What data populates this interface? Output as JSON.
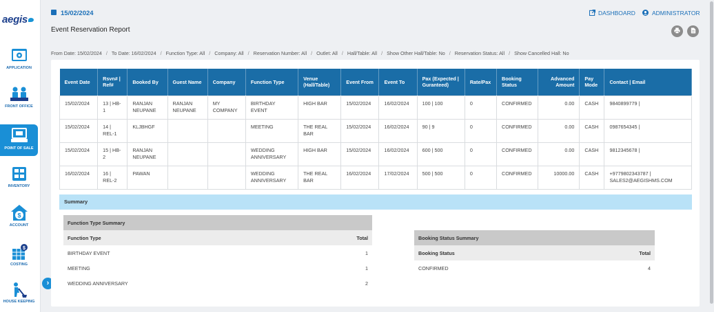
{
  "app": {
    "logo": "aegis"
  },
  "header": {
    "date": "15/02/2024",
    "dashboard_label": "DASHBOARD",
    "admin_label": "ADMINISTRATOR",
    "title": "Event Reservation Report"
  },
  "sidebar": {
    "items": [
      {
        "label": "APPLICATION",
        "icon": "application-icon"
      },
      {
        "label": "FRONT OFFICE",
        "icon": "front-office-icon"
      },
      {
        "label": "POINT OF SALE",
        "icon": "point-of-sale-icon",
        "active": true
      },
      {
        "label": "INVENTORY",
        "icon": "inventory-icon"
      },
      {
        "label": "ACCOUNT",
        "icon": "account-icon"
      },
      {
        "label": "COSTING",
        "icon": "costing-icon"
      },
      {
        "label": "HOUSE KEEPING",
        "icon": "housekeeping-icon"
      }
    ],
    "collapse_glyph": "›"
  },
  "filters": [
    "From Date: 15/02/2024",
    "To Date: 16/02/2024",
    "Function Type: All",
    "Company: All",
    "Reservation Number: All",
    "Outlet: All",
    "Hall/Table: All",
    "Show Other Hall/Table: No",
    "Reservation Status: All",
    "Show Cancelled Hall: No"
  ],
  "table": {
    "headers": [
      "Event Date",
      "Rsvn# | Ref#",
      "Booked By",
      "Guest Name",
      "Company",
      "Function Type",
      "Venue (Hall/Table)",
      "Event From",
      "Event To",
      "Pax (Expected | Guranteed)",
      "Rate/Pax",
      "Booking Status",
      "Advanced Amount",
      "Pay Mode",
      "Contact | Email"
    ],
    "rows": [
      [
        "15/02/2024",
        "13 | HB-1",
        "RANJAN NEUPANE",
        "RANJAN NEUPANE",
        "MY COMPANY",
        "BIRTHDAY EVENT",
        "HIGH BAR",
        "15/02/2024",
        "16/02/2024",
        "100 | 100",
        "0",
        "CONFIRMED",
        "0.00",
        "CASH",
        "9840899779 |"
      ],
      [
        "15/02/2024",
        "14 | REL-1",
        "KLJBHGF",
        "",
        "",
        "MEETING",
        "THE REAL BAR",
        "15/02/2024",
        "16/02/2024",
        "90 | 9",
        "0",
        "CONFIRMED",
        "0.00",
        "CASH",
        "0987654345 |"
      ],
      [
        "15/02/2024",
        "15 | HB-2",
        "RANJAN NEUPANE",
        "",
        "",
        "WEDDING ANNIVERSARY",
        "HIGH BAR",
        "15/02/2024",
        "16/02/2024",
        "600 | 500",
        "0",
        "CONFIRMED",
        "0.00",
        "CASH",
        "9812345678 |"
      ],
      [
        "16/02/2024",
        "16 | REL-2",
        "PAWAN",
        "",
        "",
        "WEDDING ANNIVERSARY",
        "THE REAL BAR",
        "16/02/2024",
        "17/02/2024",
        "500 | 500",
        "0",
        "CONFIRMED",
        "10000.00",
        "CASH",
        "+9779802343787 | SALES2@AEGISHMS.COM"
      ]
    ]
  },
  "summary": {
    "title": "Summary",
    "function_type": {
      "caption": "Function Type Summary",
      "col1": "Function Type",
      "col2": "Total",
      "rows": [
        {
          "name": "BIRTHDAY EVENT",
          "total": "1"
        },
        {
          "name": "MEETING",
          "total": "1"
        },
        {
          "name": "WEDDING ANNIVERSARY",
          "total": "2"
        }
      ]
    },
    "booking_status": {
      "caption": "Booking Status Summary",
      "col1": "Booking Status",
      "col2": "Total",
      "rows": [
        {
          "name": "CONFIRMED",
          "total": "4"
        }
      ]
    }
  },
  "colors": {
    "primary": "#1a6da7",
    "accent": "#1a8fd6",
    "summary_bar": "#b9e2f7"
  }
}
